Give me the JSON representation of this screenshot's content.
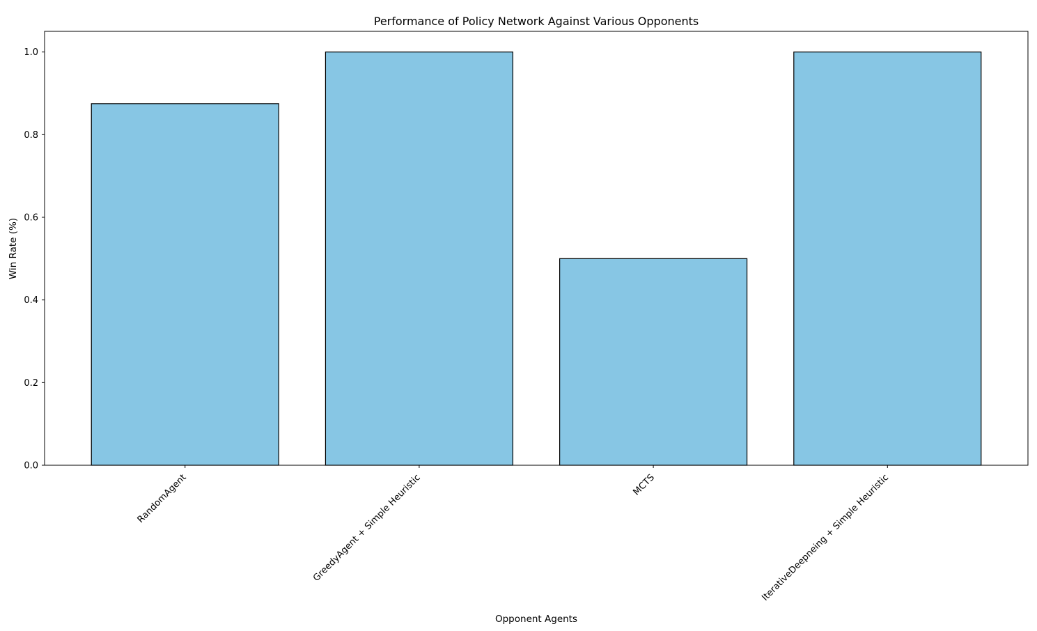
{
  "chart_data": {
    "type": "bar",
    "title": "Performance of Policy Network Against Various Opponents",
    "xlabel": "Opponent Agents",
    "ylabel": "Win Rate (%)",
    "categories": [
      "RandomAgent",
      "GreedyAgent + Simple Heuristic",
      "MCTS",
      "IterativeDeepneing + Simple Heuristic"
    ],
    "values": [
      0.875,
      1.0,
      0.5,
      1.0
    ],
    "ylim": [
      0,
      1.05
    ],
    "yticks": [
      "0.0",
      "0.2",
      "0.4",
      "0.6",
      "0.8",
      "1.0"
    ],
    "grid": false,
    "legend": "none",
    "colors": {
      "bar_fill": "#87c6e4",
      "bar_edge": "#000000",
      "axes": "#000000"
    }
  }
}
